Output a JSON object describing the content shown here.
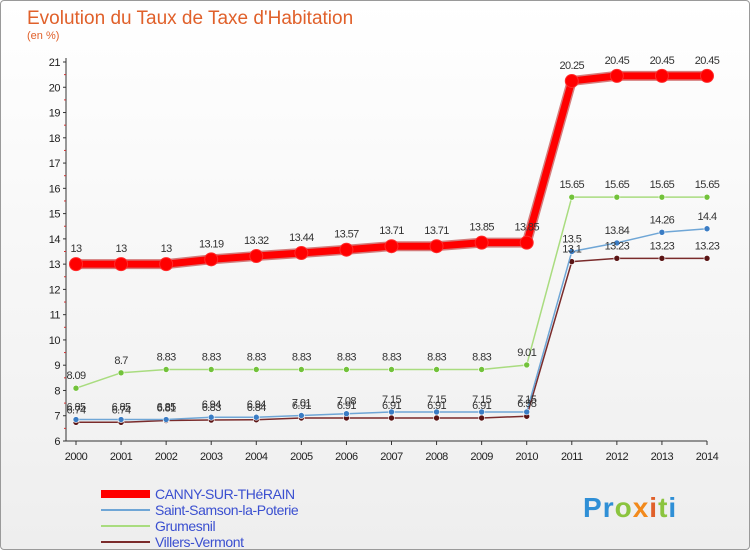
{
  "brand": {
    "letters": [
      {
        "ch": "P",
        "color": "#2f8fd6"
      },
      {
        "ch": "r",
        "color": "#2f8fd6"
      },
      {
        "ch": "o",
        "color": "#8bc43f"
      },
      {
        "ch": "x",
        "color": "#f28a1c"
      },
      {
        "ch": "i",
        "color": "#e0602a"
      },
      {
        "ch": "t",
        "color": "#8bc43f"
      },
      {
        "ch": "i",
        "color": "#2f8fd6"
      }
    ]
  },
  "chart_data": {
    "type": "line",
    "title": "Evolution du Taux de Taxe d'Habitation",
    "subtitle": "(en %)",
    "x": [
      "2000",
      "2001",
      "2002",
      "2003",
      "2004",
      "2005",
      "2006",
      "2007",
      "2008",
      "2009",
      "2010",
      "2011",
      "2012",
      "2013",
      "2014"
    ],
    "ylim": [
      6,
      21
    ],
    "yticks": [
      "6",
      "7",
      "8",
      "9",
      "10",
      "11",
      "12",
      "13",
      "14",
      "15",
      "16",
      "17",
      "18",
      "19",
      "20",
      "21"
    ],
    "grid": false,
    "legend_position": "bottom-left",
    "series": [
      {
        "name": "CANNY-SUR-THéRAIN",
        "color": "#ff0000",
        "marker": "#ff0000",
        "width": 7,
        "values": [
          13,
          13,
          13,
          13.19,
          13.32,
          13.44,
          13.57,
          13.71,
          13.71,
          13.85,
          13.85,
          20.25,
          20.45,
          20.45,
          20.45
        ],
        "labels": [
          "13",
          "13",
          "13",
          "13.19",
          "13.32",
          "13.44",
          "13.57",
          "13.71",
          "13.71",
          "13.85",
          "13.85",
          "20.25",
          "20.45",
          "20.45",
          "20.45"
        ]
      },
      {
        "name": "Saint-Samson-la-Poterie",
        "color": "#6fa6d6",
        "marker": "#3a7cc4",
        "width": 1.5,
        "values": [
          6.85,
          6.85,
          6.85,
          6.94,
          6.94,
          7.01,
          7.08,
          7.15,
          7.15,
          7.15,
          7.15,
          13.5,
          13.84,
          14.26,
          14.4
        ],
        "labels": [
          "6.85",
          "6.85",
          "6.85",
          "6.94",
          "6.94",
          "7.01",
          "7.08",
          "7.15",
          "7.15",
          "7.15",
          "7.15",
          "13.5",
          "13.84",
          "14.26",
          "14.4"
        ]
      },
      {
        "name": "Grumesnil",
        "color": "#a9dc7f",
        "marker": "#72c23a",
        "width": 1.5,
        "values": [
          8.09,
          8.7,
          8.83,
          8.83,
          8.83,
          8.83,
          8.83,
          8.83,
          8.83,
          8.83,
          9.01,
          15.65,
          15.65,
          15.65,
          15.65
        ],
        "labels": [
          "8.09",
          "8.7",
          "8.83",
          "8.83",
          "8.83",
          "8.83",
          "8.83",
          "8.83",
          "8.83",
          "8.83",
          "9.01",
          "15.65",
          "15.65",
          "15.65",
          "15.65"
        ]
      },
      {
        "name": "Villers-Vermont",
        "color": "#7a2b2b",
        "marker": "#5a1414",
        "width": 1.5,
        "values": [
          6.74,
          6.74,
          6.81,
          6.83,
          6.84,
          6.91,
          6.91,
          6.91,
          6.91,
          6.91,
          6.98,
          13.1,
          13.23,
          13.23,
          13.23
        ],
        "labels": [
          "6.74",
          "6.74",
          "6.81",
          "6.83",
          "6.84",
          "6.91",
          "6.91",
          "6.91",
          "6.91",
          "6.91",
          "6.98",
          "13.1",
          "13.23",
          "13.23",
          "13.23"
        ]
      }
    ]
  }
}
